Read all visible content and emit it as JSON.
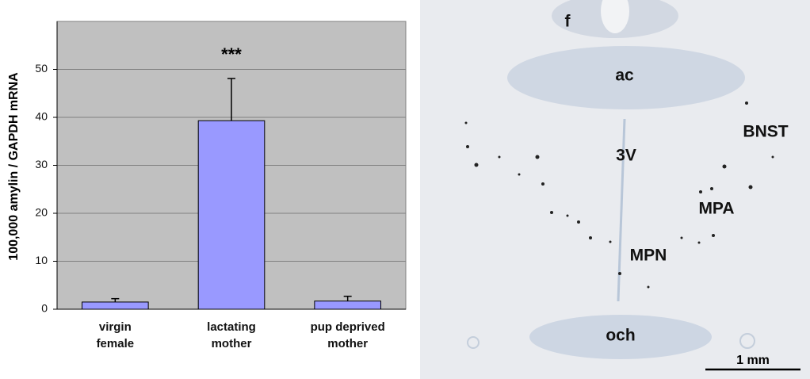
{
  "chart_data": {
    "type": "bar",
    "ylabel": "100,000  amylin / GAPDH mRNA",
    "categories": [
      "virgin\nfemale",
      "lactating\nmother",
      "pup deprived\nmother"
    ],
    "values": [
      1.5,
      39.3,
      1.7
    ],
    "errors": [
      0.7,
      8.8,
      1.0
    ],
    "annotation": "***",
    "color": "#9999ff",
    "ylim": [
      0,
      60
    ],
    "yticks": [
      0,
      10,
      20,
      30,
      40,
      50
    ],
    "grid": true
  },
  "image": {
    "labels": [
      "f",
      "ac",
      "3V",
      "BNST",
      "MPA",
      "MPN",
      "och"
    ],
    "scale_bar": "1 mm"
  }
}
